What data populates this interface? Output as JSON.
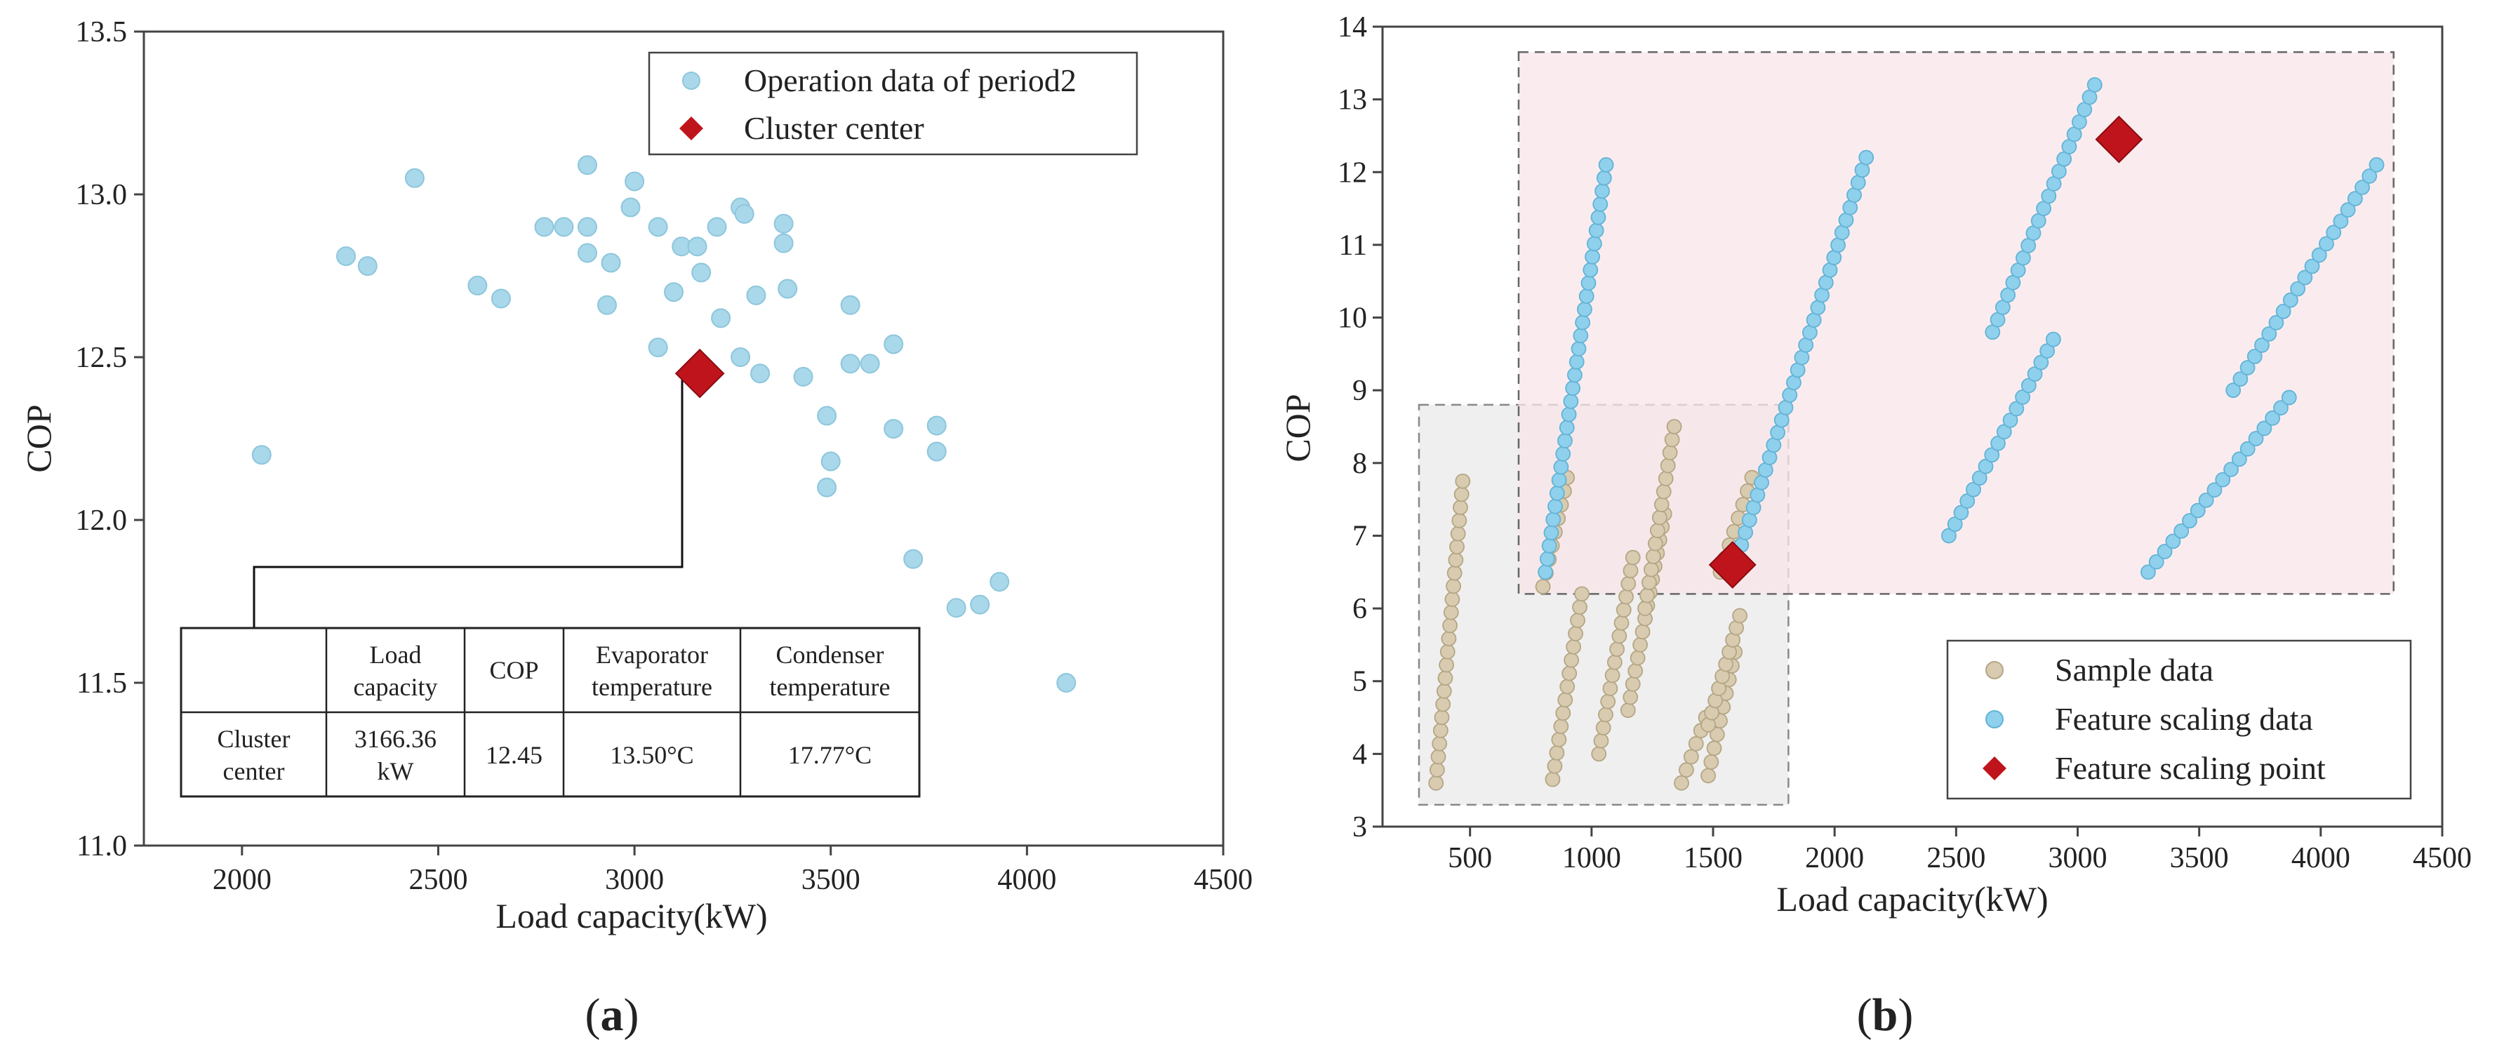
{
  "colors": {
    "operation": "#a8d8ea",
    "operation_edge": "#8ec6dc",
    "sample": "#d8cbb0",
    "sample_edge": "#b4a684",
    "feature": "#8fd0ec",
    "feature_edge": "#62b3d6",
    "center": "#c0141c",
    "pink_region": "#f8e6e8",
    "grey_region": "#ebebeb"
  },
  "chart_data": [
    {
      "type": "scatter",
      "panel_label": "(a)",
      "panel_letter": "a",
      "xlabel": "Load capacity(kW)",
      "ylabel": "COP",
      "xlim": [
        1750,
        4500
      ],
      "ylim": [
        11.0,
        13.5
      ],
      "xticks": [
        "2000",
        "2500",
        "3000",
        "3500",
        "4000",
        "4500"
      ],
      "yticks": [
        "11.0",
        "11.5",
        "12.0",
        "12.5",
        "13.0",
        "13.5"
      ],
      "legend": {
        "position": "top-right",
        "entries": [
          "Operation data of period2",
          "Cluster center"
        ]
      },
      "series": [
        {
          "name": "Operation data of period2",
          "marker": "circle",
          "points": [
            [
              2050,
              12.2
            ],
            [
              2265,
              12.81
            ],
            [
              2320,
              12.78
            ],
            [
              2440,
              13.05
            ],
            [
              2600,
              12.72
            ],
            [
              2660,
              12.68
            ],
            [
              2770,
              12.9
            ],
            [
              2820,
              12.9
            ],
            [
              2880,
              13.09
            ],
            [
              2880,
              12.9
            ],
            [
              2880,
              12.82
            ],
            [
              2930,
              12.66
            ],
            [
              2940,
              12.79
            ],
            [
              2990,
              12.96
            ],
            [
              3000,
              13.04
            ],
            [
              3060,
              12.9
            ],
            [
              3060,
              12.53
            ],
            [
              3100,
              12.7
            ],
            [
              3120,
              12.84
            ],
            [
              3160,
              12.84
            ],
            [
              3170,
              12.76
            ],
            [
              3210,
              12.9
            ],
            [
              3220,
              12.62
            ],
            [
              3270,
              12.96
            ],
            [
              3280,
              12.94
            ],
            [
              3270,
              12.5
            ],
            [
              3310,
              12.69
            ],
            [
              3320,
              12.45
            ],
            [
              3380,
              12.91
            ],
            [
              3380,
              12.85
            ],
            [
              3390,
              12.71
            ],
            [
              3430,
              12.44
            ],
            [
              3490,
              12.32
            ],
            [
              3500,
              12.18
            ],
            [
              3490,
              12.1
            ],
            [
              3550,
              12.66
            ],
            [
              3550,
              12.48
            ],
            [
              3600,
              12.48
            ],
            [
              3660,
              12.54
            ],
            [
              3660,
              12.28
            ],
            [
              3710,
              11.88
            ],
            [
              3770,
              12.29
            ],
            [
              3770,
              12.21
            ],
            [
              3820,
              11.73
            ],
            [
              3880,
              11.74
            ],
            [
              3930,
              11.81
            ],
            [
              4100,
              11.5
            ]
          ]
        },
        {
          "name": "Cluster center",
          "marker": "diamond",
          "points": [
            [
              3166.36,
              12.45
            ]
          ]
        }
      ],
      "table": {
        "headers": [
          "",
          "Load capacity",
          "COP",
          "Evaporator temperature",
          "Condenser temperature"
        ],
        "row": [
          "Cluster center",
          "3166.36 kW",
          "12.45",
          "13.50°C",
          "17.77°C"
        ]
      }
    },
    {
      "type": "scatter",
      "panel_label": "(b)",
      "panel_letter": "b",
      "xlabel": "Load capacity(kW)",
      "ylabel": "COP",
      "xlim": [
        140,
        4500
      ],
      "ylim": [
        3,
        14
      ],
      "xticks": [
        "500",
        "1000",
        "1500",
        "2000",
        "2500",
        "3000",
        "3500",
        "4000",
        "4500"
      ],
      "yticks": [
        "3",
        "4",
        "5",
        "6",
        "7",
        "8",
        "9",
        "10",
        "11",
        "12",
        "13",
        "14"
      ],
      "legend": {
        "position": "bottom-right",
        "entries": [
          "Sample data",
          "Feature scaling data",
          "Feature scaling point"
        ]
      },
      "regions": [
        {
          "name": "sample-data-region",
          "x": [
            290,
            1810
          ],
          "y": [
            3.3,
            8.8
          ]
        },
        {
          "name": "feature-scaling-region",
          "x": [
            700,
            4300
          ],
          "y": [
            6.2,
            13.65
          ]
        }
      ],
      "sample_segments": [
        [
          [
            360,
            3.6
          ],
          [
            470,
            7.75
          ]
        ],
        [
          [
            840,
            3.65
          ],
          [
            960,
            6.2
          ]
        ],
        [
          [
            800,
            6.3
          ],
          [
            900,
            7.8
          ]
        ],
        [
          [
            1030,
            4.0
          ],
          [
            1170,
            6.7
          ]
        ],
        [
          [
            1150,
            4.6
          ],
          [
            1300,
            7.3
          ]
        ],
        [
          [
            1220,
            6.0
          ],
          [
            1340,
            8.5
          ]
        ],
        [
          [
            1480,
            3.7
          ],
          [
            1590,
            5.4
          ]
        ],
        [
          [
            1370,
            3.6
          ],
          [
            1470,
            4.5
          ]
        ],
        [
          [
            1480,
            4.4
          ],
          [
            1610,
            5.9
          ]
        ],
        [
          [
            1530,
            6.5
          ],
          [
            1660,
            7.8
          ]
        ]
      ],
      "feature_segments": [
        [
          [
            810,
            6.5
          ],
          [
            1060,
            12.1
          ]
        ],
        [
          [
            1600,
            6.7
          ],
          [
            2130,
            12.2
          ]
        ],
        [
          [
            2470,
            7.0
          ],
          [
            2900,
            9.7
          ]
        ],
        [
          [
            2650,
            9.8
          ],
          [
            3070,
            13.2
          ]
        ],
        [
          [
            3290,
            6.5
          ],
          [
            3870,
            8.9
          ]
        ],
        [
          [
            3640,
            9.0
          ],
          [
            4230,
            12.1
          ]
        ]
      ],
      "feature_points": [
        [
          1580,
          6.6
        ],
        [
          3170,
          12.45
        ]
      ]
    }
  ]
}
